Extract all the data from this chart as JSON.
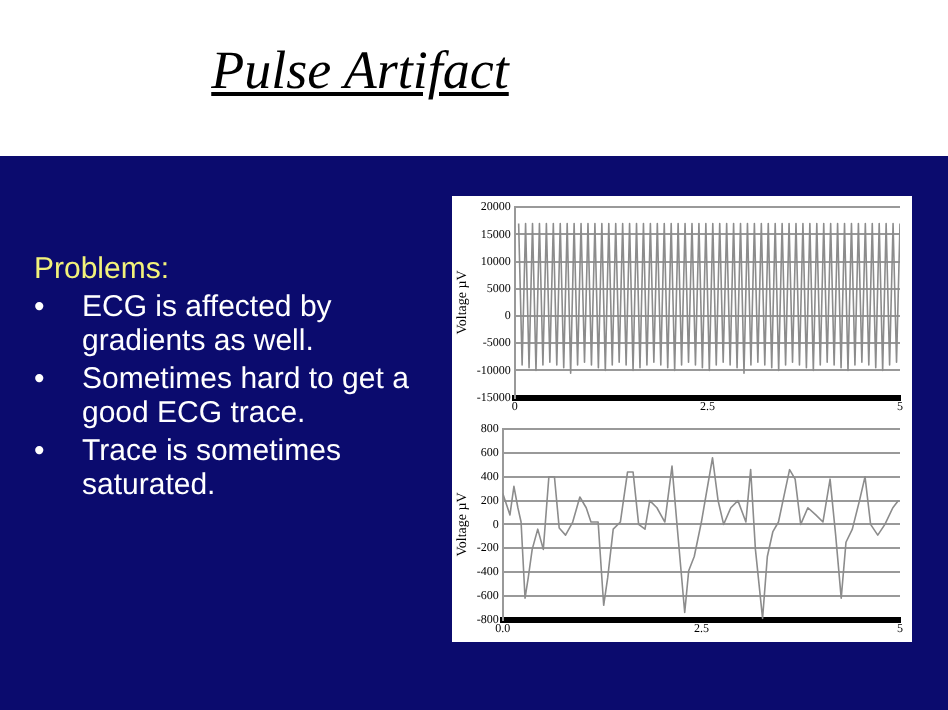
{
  "chart_data": [
    {
      "type": "other",
      "title": "Pulse Artifact",
      "annotations": [
        "Problems:",
        "• ECG is affected by gradients as well.",
        "• Sometimes hard to get a good ECG trace.",
        "• Trace is sometimes saturated."
      ]
    },
    {
      "type": "line",
      "ylabel": "Voltage µV",
      "xlim": [
        0,
        5
      ],
      "xticks": [
        0,
        2.5,
        5
      ],
      "ylim": [
        -15000,
        20000
      ],
      "yticks": [
        -15000,
        -10000,
        -5000,
        0,
        5000,
        10000,
        15000,
        20000
      ],
      "grid": "y",
      "x": [
        0.05,
        0.095,
        0.14,
        0.185,
        0.23,
        0.275,
        0.32,
        0.365,
        0.41,
        0.455,
        0.5,
        0.545,
        0.59,
        0.635,
        0.68,
        0.725,
        0.77,
        0.815,
        0.86,
        0.905,
        0.95,
        0.995,
        1.04,
        1.085,
        1.13,
        1.175,
        1.22,
        1.265,
        1.31,
        1.355,
        1.4,
        1.445,
        1.49,
        1.535,
        1.58,
        1.625,
        1.67,
        1.715,
        1.76,
        1.805,
        1.85,
        1.895,
        1.94,
        1.985,
        2.03,
        2.075,
        2.12,
        2.165,
        2.21,
        2.255,
        2.3,
        2.345,
        2.39,
        2.435,
        2.48,
        2.525,
        2.57,
        2.615,
        2.66,
        2.705,
        2.75,
        2.795,
        2.84,
        2.885,
        2.93,
        2.975,
        3.02,
        3.065,
        3.11,
        3.155,
        3.2,
        3.245,
        3.29,
        3.335,
        3.38,
        3.425,
        3.47,
        3.515,
        3.56,
        3.605,
        3.65,
        3.695,
        3.74,
        3.785,
        3.83,
        3.875,
        3.92,
        3.965,
        4.01,
        4.055,
        4.1,
        4.145,
        4.19,
        4.235,
        4.28,
        4.325,
        4.37,
        4.415,
        4.46,
        4.505,
        4.55,
        4.595,
        4.64,
        4.685,
        4.73,
        4.775,
        4.82,
        4.865,
        4.91,
        4.955,
        5.0
      ],
      "series": [
        {
          "color": "#8c8c8c",
          "values": [
            17000,
            -9000,
            17000,
            -9500,
            17000,
            -10000,
            17000,
            -9000,
            17000,
            -8500,
            17000,
            -9000,
            17000,
            -9500,
            17000,
            -10500,
            17000,
            -9000,
            17000,
            -8500,
            17000,
            -9000,
            17000,
            -9500,
            17000,
            -10000,
            17000,
            -9000,
            17000,
            -8500,
            17000,
            -9000,
            17000,
            -10000,
            17000,
            -9500,
            17000,
            -9000,
            17000,
            -8500,
            17000,
            -9000,
            17000,
            -9500,
            17000,
            -10000,
            17000,
            -9000,
            17000,
            -8500,
            17000,
            -9000,
            17000,
            -9500,
            17000,
            -10000,
            17000,
            -9000,
            17000,
            -8500,
            17000,
            -9000,
            17000,
            -9500,
            17000,
            -10500,
            17000,
            -9000,
            17000,
            -8500,
            17000,
            -9000,
            17000,
            -9500,
            17000,
            -10000,
            17000,
            -9000,
            17000,
            -8500,
            17000,
            -9000,
            17000,
            -9500,
            17000,
            -10000,
            17000,
            -9000,
            17000,
            -8500,
            17000,
            -9000,
            17000,
            -9500,
            17000,
            -10000,
            17000,
            -9000,
            17000,
            -8500,
            17000,
            -9000,
            17000,
            -9500,
            17000,
            -10000,
            17000,
            -9000,
            17000,
            -8500,
            17000
          ]
        }
      ]
    },
    {
      "type": "line",
      "ylabel": "Voltage µV",
      "xlim": [
        0,
        5
      ],
      "xticks": [
        {
          "value": 0,
          "label": "0.0"
        },
        2.5,
        5
      ],
      "ylim": [
        -800,
        800
      ],
      "yticks": [
        -800,
        -600,
        -400,
        -200,
        0,
        200,
        400,
        600,
        800
      ],
      "grid": "y",
      "x": [
        0,
        0.09,
        0.14,
        0.19,
        0.23,
        0.28,
        0.32,
        0.37,
        0.44,
        0.51,
        0.58,
        0.65,
        0.71,
        0.79,
        0.88,
        0.97,
        1.05,
        1.11,
        1.2,
        1.27,
        1.32,
        1.39,
        1.48,
        1.57,
        1.64,
        1.71,
        1.79,
        1.85,
        1.94,
        2.04,
        2.13,
        2.19,
        2.29,
        2.34,
        2.41,
        2.5,
        2.64,
        2.71,
        2.78,
        2.87,
        2.96,
        3.06,
        3.12,
        3.18,
        3.27,
        3.33,
        3.4,
        3.47,
        3.61,
        3.68,
        3.75,
        3.84,
        3.94,
        4.03,
        4.12,
        4.19,
        4.26,
        4.32,
        4.4,
        4.49,
        4.56,
        4.63,
        4.72,
        4.81,
        4.91,
        4.98
      ],
      "series": [
        {
          "color": "#8c8c8c",
          "values": [
            260,
            80,
            320,
            140,
            20,
            -620,
            -450,
            -210,
            -40,
            -210,
            400,
            400,
            -30,
            -90,
            20,
            230,
            140,
            20,
            20,
            -680,
            -450,
            -40,
            20,
            440,
            440,
            0,
            -40,
            200,
            140,
            20,
            490,
            20,
            -740,
            -390,
            -270,
            20,
            560,
            200,
            0,
            140,
            200,
            20,
            460,
            -210,
            -790,
            -270,
            -60,
            20,
            460,
            380,
            0,
            140,
            80,
            20,
            380,
            -90,
            -620,
            -150,
            -40,
            200,
            400,
            0,
            -90,
            0,
            140,
            200
          ]
        }
      ]
    }
  ]
}
